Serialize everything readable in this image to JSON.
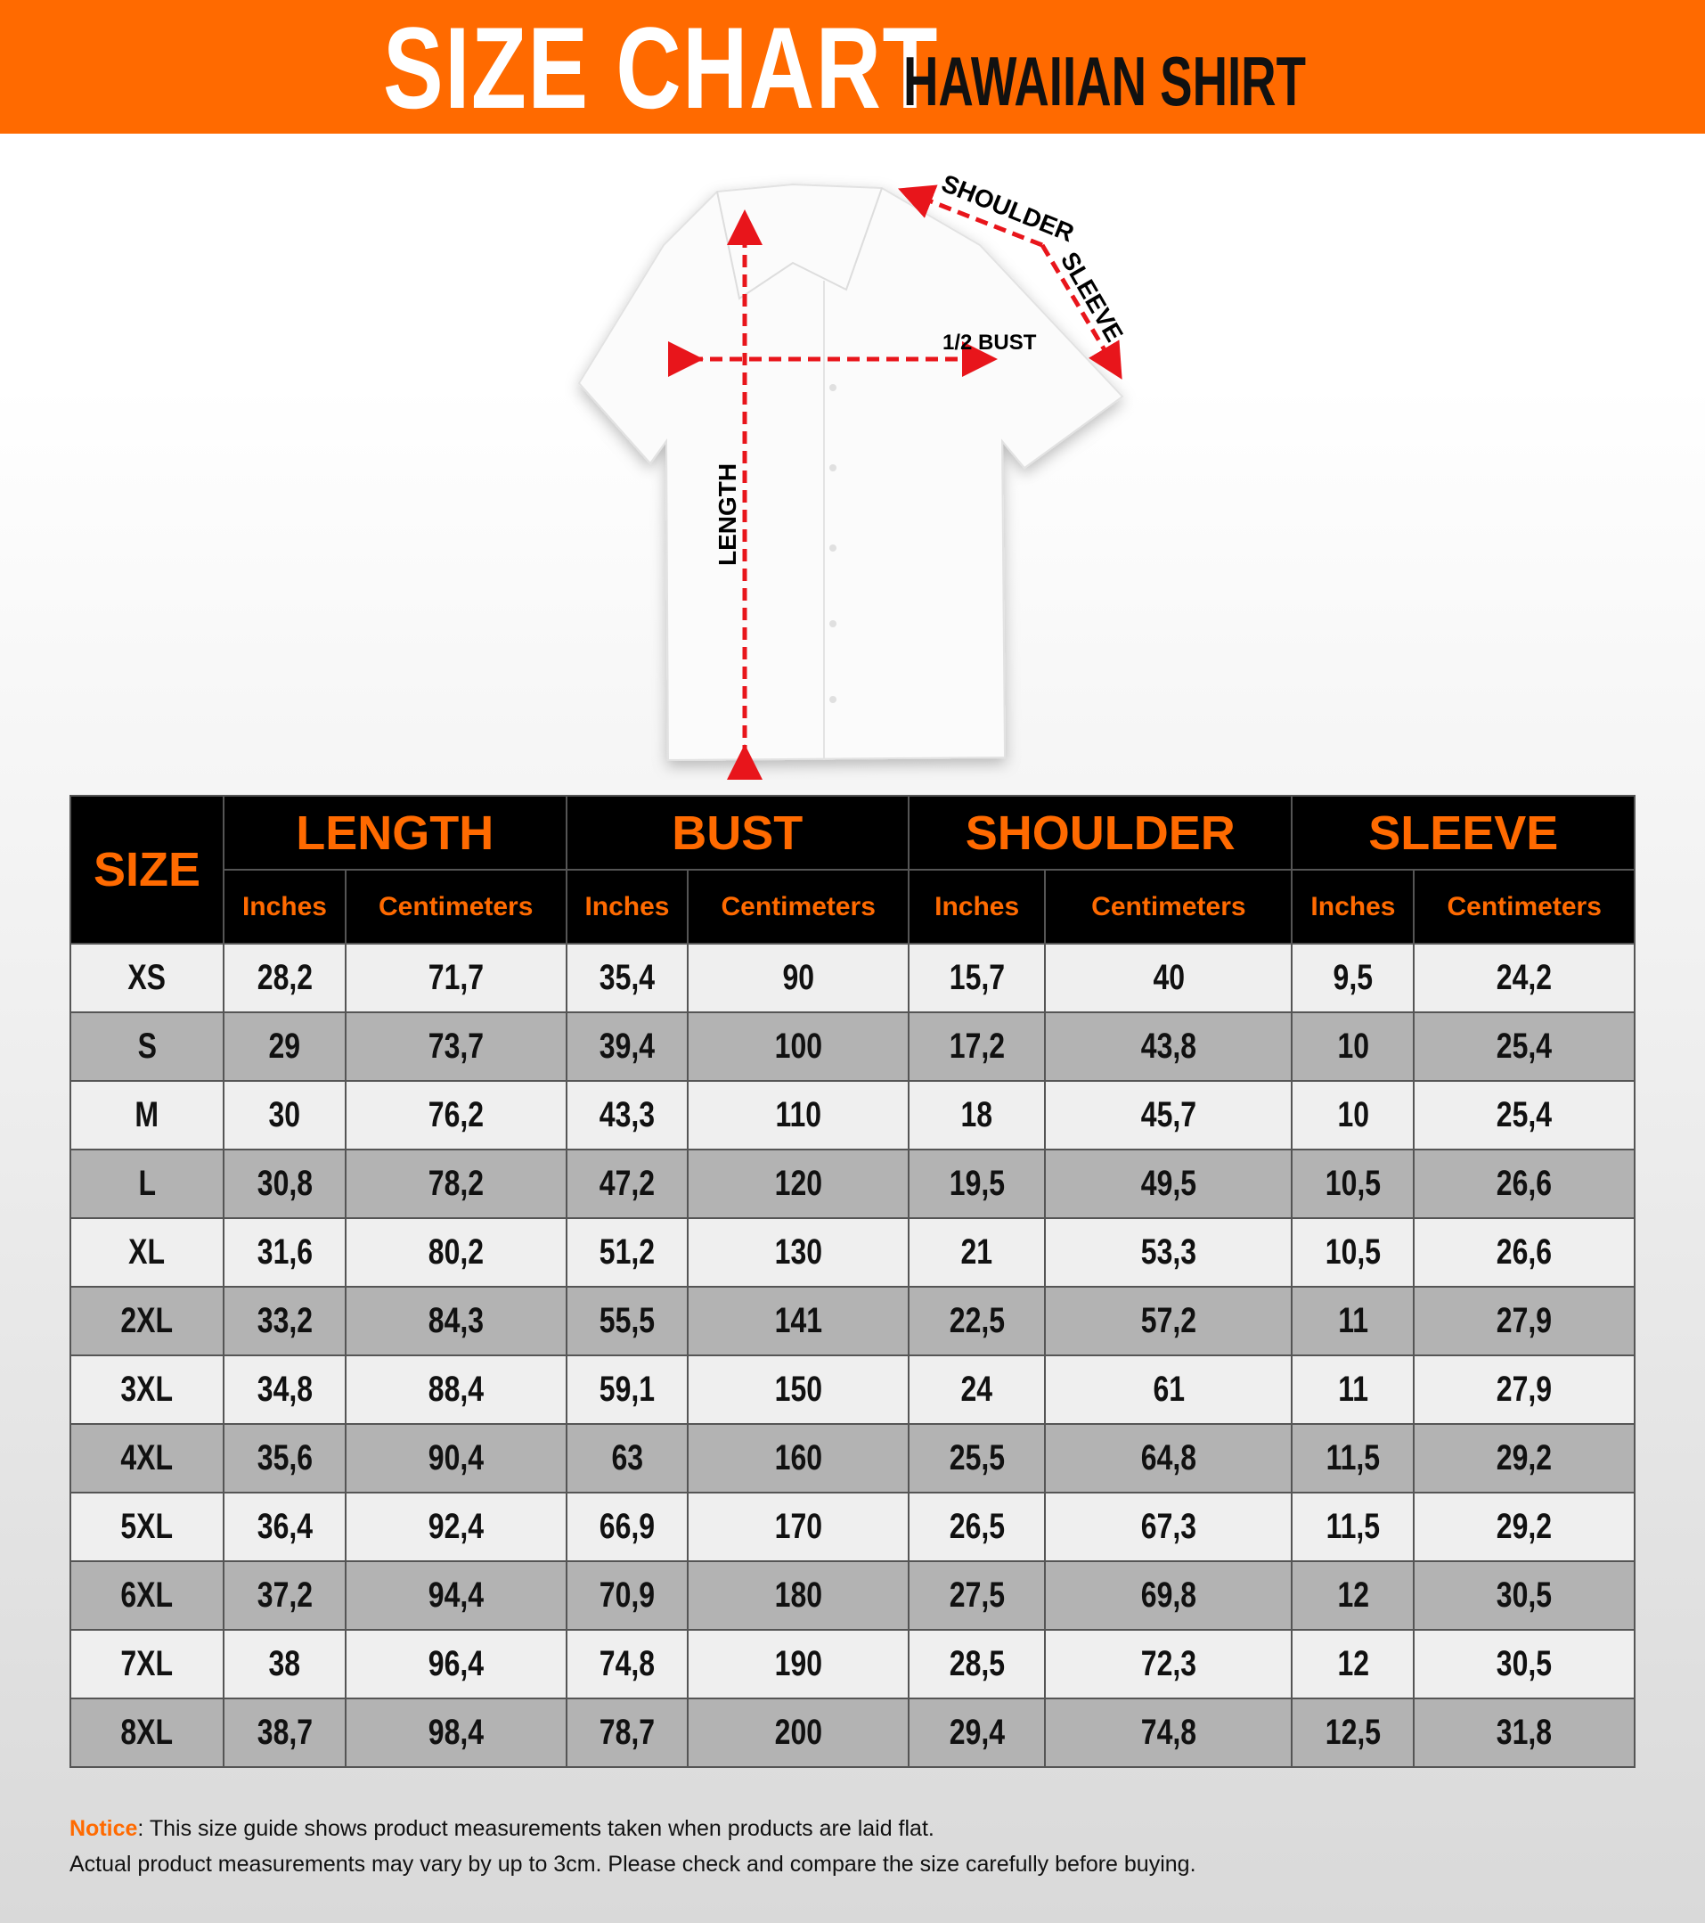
{
  "header": {
    "title": "SIZE CHART",
    "subtitle": "HAWAIIAN SHIRT"
  },
  "diagram_labels": {
    "shoulder": "SHOULDER",
    "sleeve": "SLEEVE",
    "half_bust": "1/2 BUST",
    "length": "LENGTH"
  },
  "colors": {
    "accent": "#ff6a00",
    "arrow": "#e8151b",
    "header_bg": "#000000",
    "row_light": "#efefef",
    "row_dark": "#b3b3b3"
  },
  "table": {
    "size_header": "SIZE",
    "groups": [
      "LENGTH",
      "BUST",
      "SHOULDER",
      "SLEEVE"
    ],
    "units": [
      "Inches",
      "Centimeters",
      "Inches",
      "Centimeters",
      "Inches",
      "Centimeters",
      "Inches",
      "Centimeters"
    ],
    "rows": [
      [
        "XS",
        "28,2",
        "71,7",
        "35,4",
        "90",
        "15,7",
        "40",
        "9,5",
        "24,2"
      ],
      [
        "S",
        "29",
        "73,7",
        "39,4",
        "100",
        "17,2",
        "43,8",
        "10",
        "25,4"
      ],
      [
        "M",
        "30",
        "76,2",
        "43,3",
        "110",
        "18",
        "45,7",
        "10",
        "25,4"
      ],
      [
        "L",
        "30,8",
        "78,2",
        "47,2",
        "120",
        "19,5",
        "49,5",
        "10,5",
        "26,6"
      ],
      [
        "XL",
        "31,6",
        "80,2",
        "51,2",
        "130",
        "21",
        "53,3",
        "10,5",
        "26,6"
      ],
      [
        "2XL",
        "33,2",
        "84,3",
        "55,5",
        "141",
        "22,5",
        "57,2",
        "11",
        "27,9"
      ],
      [
        "3XL",
        "34,8",
        "88,4",
        "59,1",
        "150",
        "24",
        "61",
        "11",
        "27,9"
      ],
      [
        "4XL",
        "35,6",
        "90,4",
        "63",
        "160",
        "25,5",
        "64,8",
        "11,5",
        "29,2"
      ],
      [
        "5XL",
        "36,4",
        "92,4",
        "66,9",
        "170",
        "26,5",
        "67,3",
        "11,5",
        "29,2"
      ],
      [
        "6XL",
        "37,2",
        "94,4",
        "70,9",
        "180",
        "27,5",
        "69,8",
        "12",
        "30,5"
      ],
      [
        "7XL",
        "38",
        "96,4",
        "74,8",
        "190",
        "28,5",
        "72,3",
        "12",
        "30,5"
      ],
      [
        "8XL",
        "38,7",
        "98,4",
        "78,7",
        "200",
        "29,4",
        "74,8",
        "12,5",
        "31,8"
      ]
    ]
  },
  "notice": {
    "label": "Notice",
    "line1": ": This size guide shows product measurements taken when products are laid flat.",
    "line2": "Actual product measurements may vary by up to 3cm. Please check and compare the size carefully before buying."
  }
}
